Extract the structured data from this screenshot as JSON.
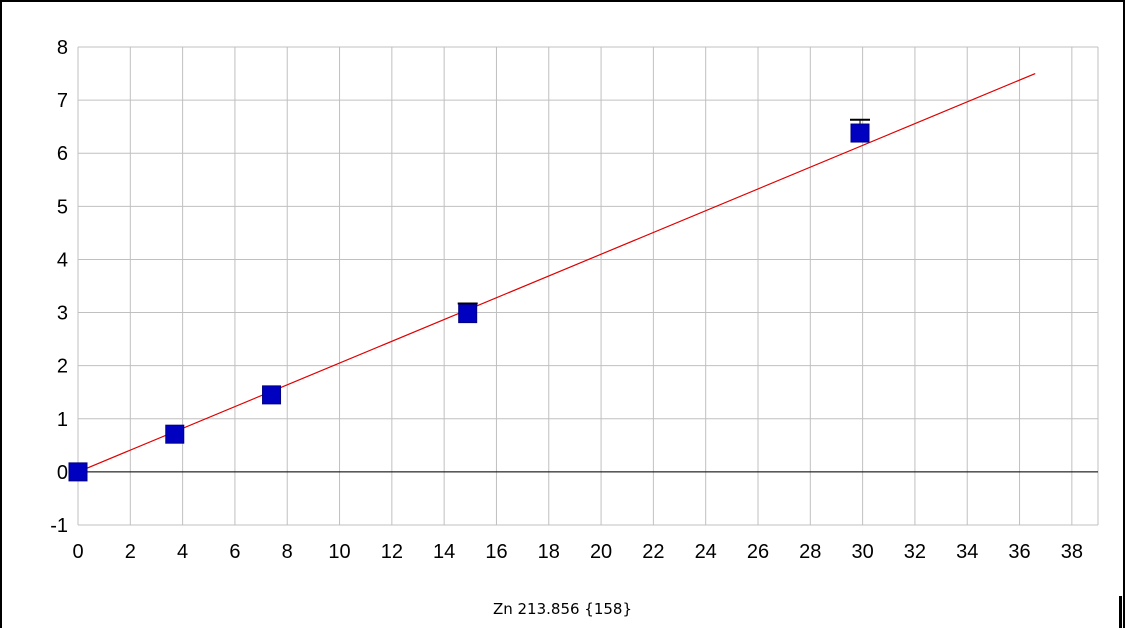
{
  "chart_data": {
    "type": "scatter",
    "title": "Zn 213.856 {158}",
    "xlabel": "",
    "ylabel": "",
    "xlim": [
      0,
      39
    ],
    "ylim": [
      -1,
      8
    ],
    "x_ticks": [
      "0",
      "2",
      "4",
      "6",
      "8",
      "10",
      "12",
      "14",
      "16",
      "18",
      "20",
      "22",
      "24",
      "26",
      "28",
      "30",
      "32",
      "34",
      "36",
      "38"
    ],
    "y_ticks": [
      "-1",
      "0",
      "1",
      "2",
      "3",
      "4",
      "5",
      "6",
      "7",
      "8"
    ],
    "grid": true,
    "points": [
      {
        "x": 0,
        "y": 0
      },
      {
        "x": 3.7,
        "y": 0.71
      },
      {
        "x": 7.4,
        "y": 1.45
      },
      {
        "x": 14.9,
        "y": 2.98
      },
      {
        "x": 29.9,
        "y": 6.38
      }
    ],
    "error_caps": [
      {
        "x": 14.9,
        "y": 3.17
      },
      {
        "x": 29.9,
        "y": 6.63
      }
    ],
    "fit_line": {
      "x": [
        0,
        36.6
      ],
      "y": [
        0,
        7.5
      ]
    },
    "colors": {
      "points": "#0000c0",
      "fit_line": "#e00000",
      "grid": "#c0c0c0",
      "zero_line": "#000000"
    }
  }
}
